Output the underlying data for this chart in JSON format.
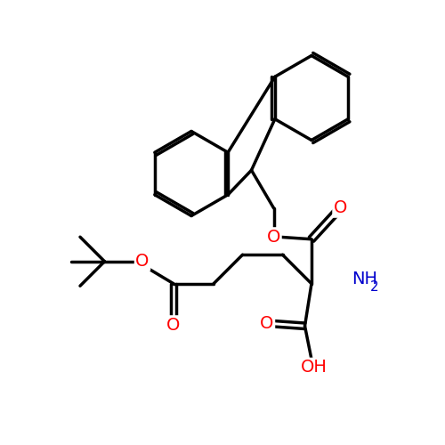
{
  "background_color": "#ffffff",
  "bond_color": "#000000",
  "oxygen_color": "#ff0000",
  "nitrogen_color": "#0000cd",
  "line_width": 2.5,
  "font_size": 14,
  "figsize": [
    5.0,
    5.0
  ],
  "dpi": 100,
  "xlim": [
    0,
    10
  ],
  "ylim": [
    0,
    10
  ]
}
